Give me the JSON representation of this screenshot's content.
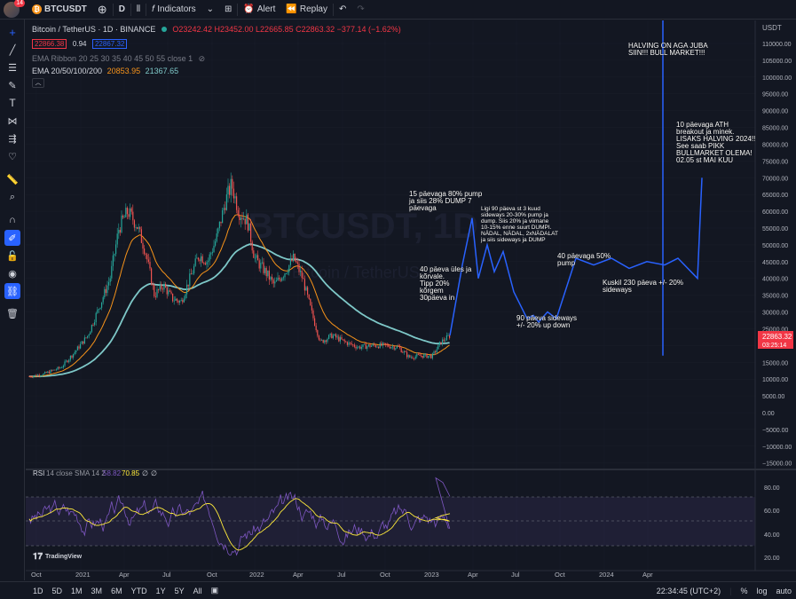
{
  "toolbar": {
    "notification_count": "14",
    "symbol": "BTCUSDT",
    "interval": "D",
    "indicators_label": "Indicators",
    "alert_label": "Alert",
    "replay_label": "Replay"
  },
  "legend": {
    "title": "Bitcoin / TetherUS · 1D · BINANCE",
    "open": "O23242.42",
    "high": "H23452.00",
    "low": "L22665.85",
    "close": "C22863.32",
    "change": "−377.14 (−1.62%)",
    "bid": "22866.38",
    "spread": "0.94",
    "ask": "22867.32",
    "ribbon": "EMA Ribbon 20 25 30 35 40 45 50 55 close 1",
    "ema_label": "EMA 20/50/100/200",
    "ema_val1": "20853.95",
    "ema_val2": "21367.65",
    "watermark": "BTCUSDT, 1D",
    "watermark_sub": "Bitcoin / TetherUS"
  },
  "price_axis": {
    "currency": "USDT",
    "ticks": [
      "110000.00",
      "105000.00",
      "100000.00",
      "95000.00",
      "90000.00",
      "85000.00",
      "80000.00",
      "75000.00",
      "70000.00",
      "65000.00",
      "60000.00",
      "55000.00",
      "50000.00",
      "45000.00",
      "40000.00",
      "35000.00",
      "30000.00",
      "25000.00",
      "20000.00",
      "15000.00",
      "10000.00",
      "5000.00",
      "0.00",
      "−5000.00",
      "−10000.00",
      "−15000.00"
    ],
    "current_price": "22863.32",
    "countdown": "03:25:14"
  },
  "rsi": {
    "label": "RSI",
    "params": "14 close SMA 14 2",
    "val1": "58.82",
    "val2": "70.85",
    "na1": "∅",
    "na2": "∅",
    "ticks": [
      "80.00",
      "60.00",
      "40.00",
      "20.00"
    ],
    "logo": "TradingView"
  },
  "time_axis": {
    "labels": [
      "Oct",
      "2021",
      "Apr",
      "Jul",
      "Oct",
      "2022",
      "Apr",
      "Jul",
      "Oct",
      "2023",
      "Apr",
      "Jul",
      "Oct",
      "2024",
      "Apr"
    ]
  },
  "annotations": {
    "halving": "HALVING ON AGA JUBA\nSIIN!!! BULL MARKET!!!",
    "ath": "10 päevaga ATH\nbreakout ja minek.\nLISAKS HALVING 2024!!\nSee saab PIKK\nBULLMARKET OLEMA!\n02.05 st MAI KUU",
    "pump15": "15 päevaga 80% pump\nja siis 28% DUMP 7\npäevaga",
    "sideways90": "Ligi 90 päeva st 3 kuud\nsideways 20-30% pump ja\ndump. Siis 20% ja viimane\n10-15% enne suurt DUMPI.\nNÄDAL, NÄDAL, 2xNÄDALAT\nja siis sideways ja DUMP",
    "up40": "40 päeva üles ja\nkõrvale.\nTipp 20%\nkõrgem\n30päeva in",
    "pump40": "40 päevaga 50%\npump",
    "side230": "Kuskil 230 päeva +/- 20%\nsideways",
    "side90b": "90 päeva sideways\n+/- 20% up down"
  },
  "bottom": {
    "ranges": [
      "1D",
      "5D",
      "1M",
      "3M",
      "6M",
      "YTD",
      "1Y",
      "5Y",
      "All"
    ],
    "clock": "22:34:45 (UTC+2)",
    "percent": "%",
    "log": "log",
    "auto": "auto"
  },
  "colors": {
    "background": "#131722",
    "up": "#26a69a",
    "down": "#ef5350",
    "projection": "#2962ff",
    "ema_orange": "#f7931a",
    "ema_teal": "#7ec8c8",
    "rsi_line": "#7e57c2",
    "rsi_sma": "#ffeb3b"
  }
}
